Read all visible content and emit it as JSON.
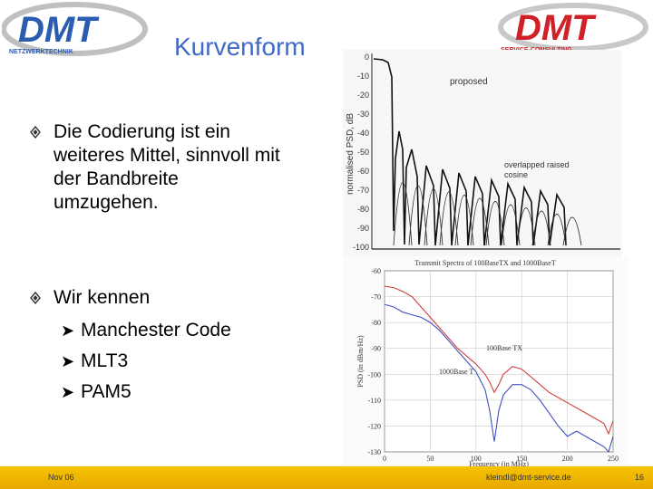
{
  "logos": {
    "left_text": "DMT",
    "left_subtitle": "NETZWERKTECHNIK",
    "right_text": "DMT",
    "right_subtitle": "SERVICE-CONSULTING"
  },
  "slide": {
    "title": "Kurvenform",
    "bullets": [
      {
        "text": "Die Codierung ist ein weiteres Mittel, sinnvoll mit der Bandbreite umzugehen."
      },
      {
        "text": "Wir kennen"
      }
    ],
    "sub_items": [
      "Manchester Code",
      "MLT3",
      "PAM5"
    ]
  },
  "figure1": {
    "ylabel": "normalised PSD, dB",
    "y_ticks": [
      "0",
      "-10",
      "-20",
      "-30",
      "-40",
      "-50",
      "-60",
      "-70",
      "-80",
      "-90",
      "-100"
    ],
    "annotations": [
      "proposed",
      "overlapped raised cosine"
    ]
  },
  "chart_data": {
    "type": "line",
    "title": "Transmit Spectra of 100BaseTX and 1000BaseT",
    "xlabel": "Frequency (in MHz)",
    "ylabel": "PSD (in dBm/Hz)",
    "xlim": [
      0,
      250
    ],
    "ylim": [
      -130,
      -60
    ],
    "x_ticks": [
      "0",
      "50",
      "100",
      "150",
      "200",
      "250"
    ],
    "y_ticks": [
      "-60",
      "-70",
      "-80",
      "-90",
      "-100",
      "-110",
      "-120",
      "-130"
    ],
    "grid": true,
    "x": [
      0,
      10,
      20,
      30,
      40,
      50,
      60,
      70,
      80,
      90,
      100,
      110,
      115,
      120,
      125,
      130,
      140,
      150,
      160,
      170,
      180,
      190,
      200,
      210,
      220,
      230,
      240,
      245,
      250
    ],
    "series": [
      {
        "name": "100BaseTX",
        "color": "#d04040",
        "values": [
          -66,
          -66.5,
          -68,
          -70,
          -74,
          -78,
          -82,
          -86,
          -90,
          -93,
          -96,
          -100,
          -103,
          -107,
          -104,
          -100,
          -97,
          -98,
          -101,
          -104,
          -107,
          -109,
          -111,
          -113,
          -115,
          -117,
          -119,
          -123,
          -118
        ]
      },
      {
        "name": "1000BaseT",
        "color": "#4050c0",
        "values": [
          -73,
          -74,
          -76,
          -77,
          -78,
          -80,
          -83,
          -87,
          -91,
          -95,
          -99,
          -106,
          -114,
          -126,
          -114,
          -108,
          -104,
          -104,
          -106,
          -110,
          -115,
          -120,
          -124,
          -122,
          -124,
          -126,
          -128,
          -130,
          -124
        ]
      }
    ],
    "annotations": [
      "100Base TX",
      "1000Base T"
    ]
  },
  "footer": {
    "date": "Nov 06",
    "email": "kleindl@dmt-service.de",
    "page": "16"
  },
  "colors": {
    "title": "#4169c8",
    "footer": "#f0b800",
    "logo_red": "#d02028",
    "logo_blue": "#2a5cb0"
  }
}
